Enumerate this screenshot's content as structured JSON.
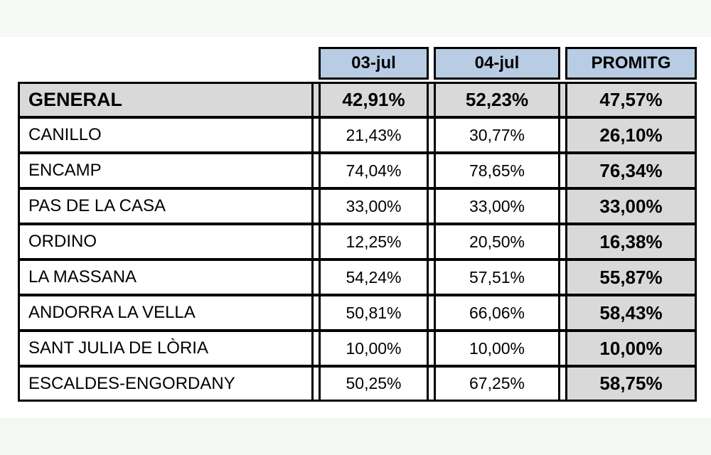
{
  "colors": {
    "header_bg": "#b8cce4",
    "highlight_bg": "#d9d9d9",
    "border": "#000000",
    "page_margin_strip": "#f6f9f6"
  },
  "chart_data": {
    "type": "table",
    "title": "",
    "column_headers": [
      "03-jul",
      "04-jul",
      "PROMITG"
    ],
    "rows": [
      {
        "label": "GENERAL",
        "values": [
          "42,91%",
          "52,23%",
          "47,57%"
        ]
      },
      {
        "label": "CANILLO",
        "values": [
          "21,43%",
          "30,77%",
          "26,10%"
        ]
      },
      {
        "label": "ENCAMP",
        "values": [
          "74,04%",
          "78,65%",
          "76,34%"
        ]
      },
      {
        "label": "PAS DE LA CASA",
        "values": [
          "33,00%",
          "33,00%",
          "33,00%"
        ]
      },
      {
        "label": "ORDINO",
        "values": [
          "12,25%",
          "20,50%",
          "16,38%"
        ]
      },
      {
        "label": "LA MASSANA",
        "values": [
          "54,24%",
          "57,51%",
          "55,87%"
        ]
      },
      {
        "label": "ANDORRA LA VELLA",
        "values": [
          "50,81%",
          "66,06%",
          "58,43%"
        ]
      },
      {
        "label": "SANT JULIA DE LÒRIA",
        "values": [
          "10,00%",
          "10,00%",
          "10,00%"
        ]
      },
      {
        "label": "ESCALDES-ENGORDANY",
        "values": [
          "50,25%",
          "67,25%",
          "58,75%"
        ]
      }
    ]
  }
}
